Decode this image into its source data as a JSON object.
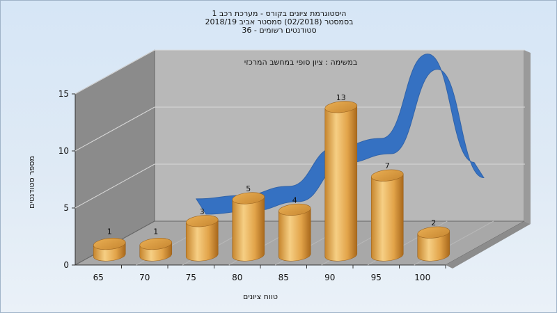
{
  "header": {
    "line1": "היסטוגרמת ציונים בקורס - מערכת רכב 1",
    "line2": "בסמסטר  (02/2018)  סמסטר אביב 2018/19",
    "line3": "סטודנטים רשומים - 36"
  },
  "chart_data": {
    "type": "bar",
    "title": "במשימה : ציון סופי במחשב המרכזי",
    "xlabel": "טווח ציונים",
    "ylabel": "מספר סטודנטים",
    "categories": [
      "65",
      "70",
      "75",
      "80",
      "85",
      "90",
      "95",
      "100"
    ],
    "values": [
      1,
      1,
      3,
      5,
      4,
      13,
      7,
      2
    ],
    "ylim": [
      0,
      15
    ],
    "yticks": [
      "0",
      "5",
      "10",
      "15"
    ],
    "grid": true,
    "curve": {
      "type": "ribbon",
      "color": "#2f6ec3",
      "values": [
        null,
        3.3,
        3.6,
        4.4,
        7.8,
        8.6,
        16,
        6.5
      ]
    },
    "colors": {
      "bar_light": "#f4cc80",
      "bar_mid": "#dfa347",
      "bar_dark": "#b27220",
      "back_wall": "#b6b6b6",
      "left_wall": "#8a8a8a",
      "floor": "#a5a5a5"
    }
  }
}
